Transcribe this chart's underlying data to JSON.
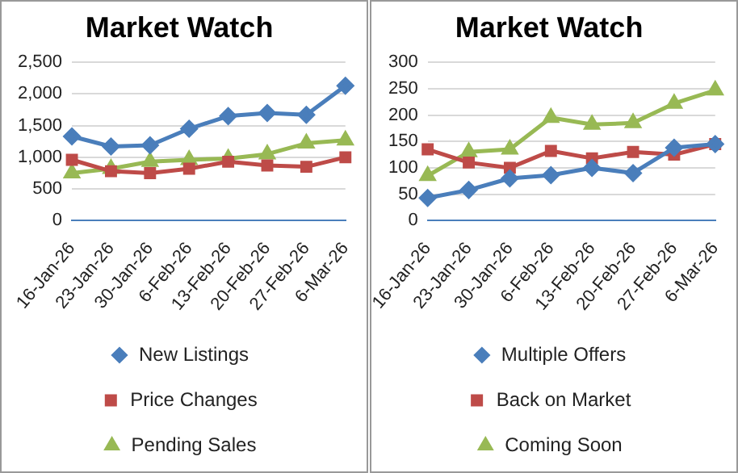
{
  "chart_data": [
    {
      "type": "line",
      "title": "Market Watch",
      "categories": [
        "16-Jan-26",
        "23-Jan-26",
        "30-Jan-26",
        "6-Feb-26",
        "13-Feb-26",
        "20-Feb-26",
        "27-Feb-26",
        "6-Mar-26"
      ],
      "ylim": [
        0,
        2500
      ],
      "yticks": [
        {
          "value": 0,
          "label": "0"
        },
        {
          "value": 500,
          "label": "500"
        },
        {
          "value": 1000,
          "label": "1,000"
        },
        {
          "value": 1500,
          "label": "1,500"
        },
        {
          "value": 2000,
          "label": "2,000"
        },
        {
          "value": 2500,
          "label": "2,500"
        }
      ],
      "grid": "y",
      "legend": "bottom",
      "series": [
        {
          "name": "New Listings",
          "color": "#4a7ebb",
          "marker": "diamond",
          "values": [
            1330,
            1170,
            1190,
            1450,
            1650,
            1700,
            1670,
            2130
          ]
        },
        {
          "name": "Price Changes",
          "color": "#be4b48",
          "marker": "square",
          "values": [
            960,
            780,
            750,
            820,
            930,
            870,
            850,
            1000
          ]
        },
        {
          "name": "Pending Sales",
          "color": "#98b954",
          "marker": "triangle",
          "values": [
            750,
            820,
            930,
            960,
            980,
            1050,
            1220,
            1270
          ]
        }
      ]
    },
    {
      "type": "line",
      "title": "Market Watch",
      "categories": [
        "16-Jan-26",
        "23-Jan-26",
        "30-Jan-26",
        "6-Feb-26",
        "13-Feb-26",
        "20-Feb-26",
        "27-Feb-26",
        "6-Mar-26"
      ],
      "ylim": [
        0,
        300
      ],
      "yticks": [
        0,
        50,
        100,
        150,
        200,
        250,
        300
      ],
      "grid": "y",
      "legend": "bottom",
      "series": [
        {
          "name": "Multiple Offers",
          "color": "#4a7ebb",
          "marker": "diamond",
          "values": [
            43,
            58,
            80,
            86,
            100,
            90,
            138,
            145
          ]
        },
        {
          "name": "Back on Market",
          "color": "#be4b48",
          "marker": "square",
          "values": [
            135,
            110,
            100,
            132,
            118,
            130,
            125,
            145
          ]
        },
        {
          "name": "Coming Soon",
          "color": "#98b954",
          "marker": "triangle",
          "values": [
            85,
            130,
            135,
            195,
            182,
            185,
            222,
            247
          ]
        }
      ]
    }
  ]
}
